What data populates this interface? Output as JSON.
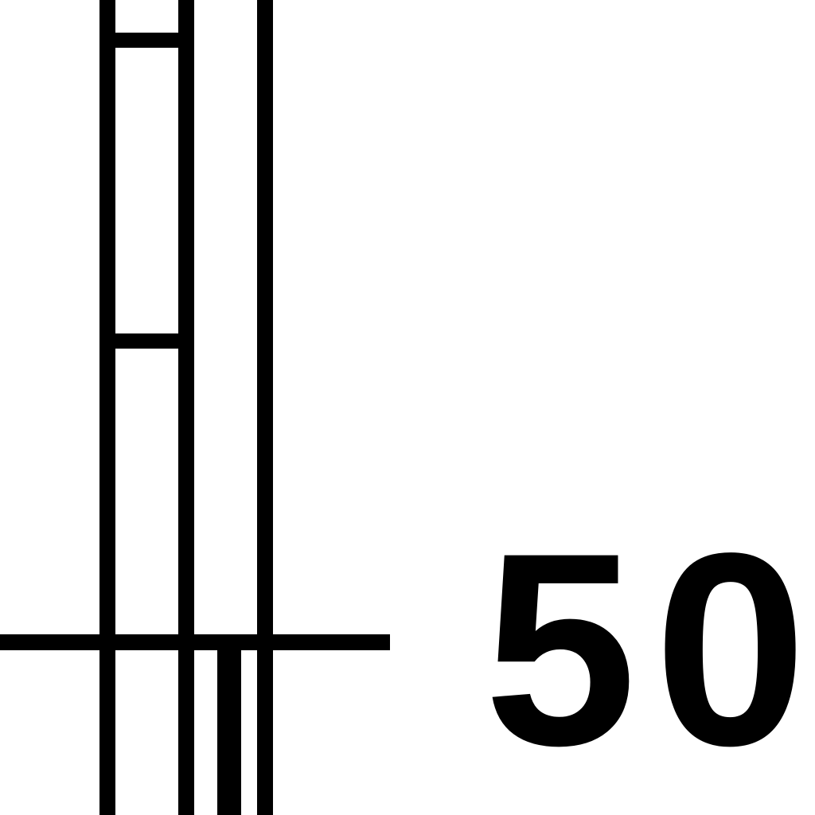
{
  "label": "50"
}
